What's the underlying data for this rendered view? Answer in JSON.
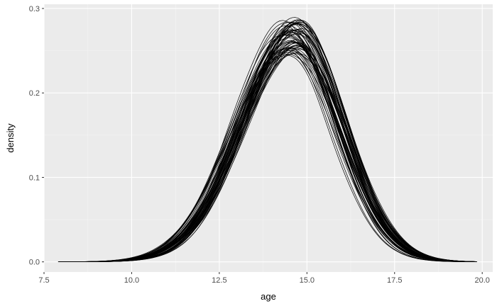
{
  "chart_data": {
    "type": "line",
    "title": "",
    "xlabel": "age",
    "ylabel": "density",
    "xlim": [
      7.5,
      20.3
    ],
    "ylim": [
      -0.012,
      0.305
    ],
    "x_ticks": [
      {
        "value": 7.5,
        "label": "7.5"
      },
      {
        "value": 10.0,
        "label": "10.0"
      },
      {
        "value": 12.5,
        "label": "12.5"
      },
      {
        "value": 15.0,
        "label": "15.0"
      },
      {
        "value": 17.5,
        "label": "17.5"
      },
      {
        "value": 20.0,
        "label": "20.0"
      }
    ],
    "y_ticks": [
      {
        "value": 0.0,
        "label": "0.0"
      },
      {
        "value": 0.1,
        "label": "0.1"
      },
      {
        "value": 0.2,
        "label": "0.2"
      },
      {
        "value": 0.3,
        "label": "0.3"
      }
    ],
    "grid": true,
    "legend": "none",
    "series_count": 60,
    "series_shape": {
      "x_min": 7.9,
      "x_max": 19.85,
      "peak_x": 14.6,
      "peak_density_range": [
        0.245,
        0.288
      ],
      "sd_left": 1.52,
      "sd_right": 1.35
    },
    "colors": {
      "panel": "#ebebeb",
      "grid_major": "#ffffff",
      "grid_minor": "#f4f4f4",
      "line": "#000000"
    }
  }
}
